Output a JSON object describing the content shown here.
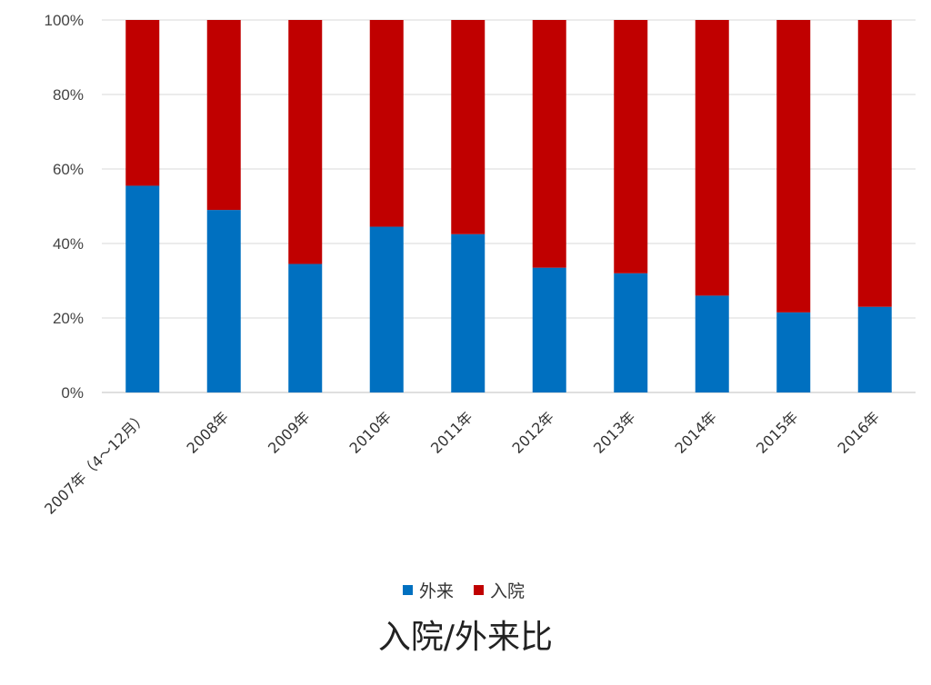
{
  "chart_data": {
    "type": "bar",
    "stacked": "percent",
    "title": "入院/外来比",
    "categories": [
      "2007年（4～12月）",
      "2008年",
      "2009年",
      "2010年",
      "2011年",
      "2012年",
      "2013年",
      "2014年",
      "2015年",
      "2016年"
    ],
    "series": [
      {
        "name": "外来",
        "color": "#0070c0",
        "values": [
          55.5,
          49,
          34.5,
          44.5,
          42.5,
          33.5,
          32,
          26,
          21.5,
          23
        ]
      },
      {
        "name": "入院",
        "color": "#c00000",
        "values": [
          44.5,
          51,
          65.5,
          55.5,
          57.5,
          66.5,
          68,
          74,
          78.5,
          77
        ]
      }
    ],
    "yticks": [
      "0%",
      "20%",
      "40%",
      "60%",
      "80%",
      "100%"
    ],
    "ylim": [
      0,
      100
    ],
    "grid": true,
    "legend": "bottom"
  }
}
